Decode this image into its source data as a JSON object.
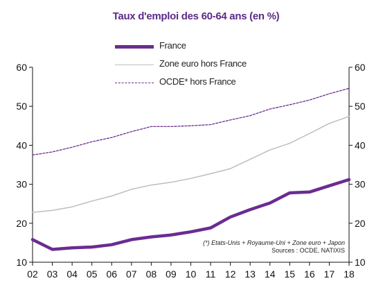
{
  "chart_data": {
    "type": "line",
    "title": "Taux d'emploi des 60-64 ans (en %)",
    "categories": [
      "02",
      "03",
      "04",
      "05",
      "06",
      "07",
      "08",
      "09",
      "10",
      "11",
      "12",
      "13",
      "14",
      "15",
      "16",
      "17",
      "18"
    ],
    "ylim": [
      10,
      60
    ],
    "yticks": [
      10,
      20,
      30,
      40,
      50,
      60
    ],
    "grid": false,
    "dual_y_axis": true,
    "legend_position": "top-center",
    "series": [
      {
        "name": "France",
        "color": "#6a2c91",
        "style": "solid-thick",
        "values": [
          15.8,
          13.3,
          13.7,
          13.9,
          14.5,
          15.8,
          16.5,
          17.0,
          17.8,
          18.8,
          21.6,
          23.5,
          25.2,
          27.8,
          28.0,
          29.6,
          31.2
        ]
      },
      {
        "name": "Zone euro hors France",
        "color": "#bdbdbd",
        "style": "solid-thin",
        "values": [
          22.8,
          23.3,
          24.2,
          25.7,
          27.0,
          28.7,
          29.8,
          30.5,
          31.5,
          32.7,
          34.0,
          36.4,
          38.8,
          40.5,
          43.0,
          45.6,
          47.4
        ]
      },
      {
        "name": "OCDE* hors France",
        "color": "#6a2c91",
        "style": "dashed",
        "values": [
          37.5,
          38.3,
          39.5,
          40.9,
          42.0,
          43.5,
          44.8,
          44.8,
          45.0,
          45.3,
          46.5,
          47.6,
          49.3,
          50.4,
          51.6,
          53.2,
          54.6
        ]
      }
    ],
    "footnote": "(*) Etats-Unis + Royaume-Uni + Zone euro + Japon",
    "sources": "Sources : OCDE, NATIXIS"
  }
}
